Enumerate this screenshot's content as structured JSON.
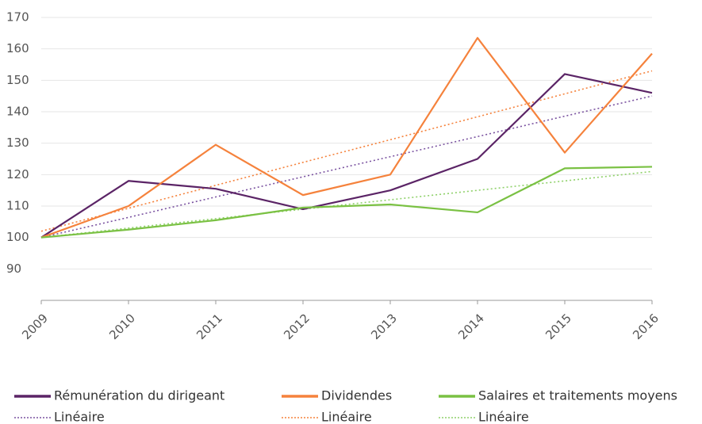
{
  "chart_data": {
    "type": "line",
    "categories": [
      "2009",
      "2010",
      "2011",
      "2012",
      "2013",
      "2014",
      "2015",
      "2016"
    ],
    "ylim": [
      80,
      170
    ],
    "yticks": [
      90,
      100,
      110,
      120,
      130,
      140,
      150,
      160,
      170
    ],
    "grid": true,
    "series": [
      {
        "name": "Rémunération du dirigeant",
        "color": "#5b2466",
        "style": "solid",
        "values": [
          100,
          118,
          115.5,
          109,
          115,
          125,
          152,
          146
        ]
      },
      {
        "name": "Dividendes",
        "color": "#f5823c",
        "style": "solid",
        "values": [
          100,
          110,
          129.5,
          113.5,
          120,
          163.5,
          127,
          158.5
        ]
      },
      {
        "name": "Salaires et traitements moyens",
        "color": "#7ac143",
        "style": "solid",
        "values": [
          100,
          102.5,
          105.5,
          109.5,
          110.5,
          108,
          122,
          122.5
        ]
      },
      {
        "name": "Linéaire",
        "color": "#7a52a0",
        "style": "dotted",
        "values": [
          100,
          106.4,
          112.9,
          119.3,
          125.7,
          132.1,
          138.6,
          145
        ]
      },
      {
        "name": "Linéaire",
        "color": "#f5823c",
        "style": "dotted",
        "values": [
          102,
          109.3,
          116.6,
          123.9,
          131.1,
          138.4,
          145.7,
          153
        ]
      },
      {
        "name": "Linéaire",
        "color": "#8fd16a",
        "style": "dotted",
        "values": [
          100,
          103,
          106,
          109,
          112,
          115,
          118,
          121
        ]
      }
    ]
  }
}
